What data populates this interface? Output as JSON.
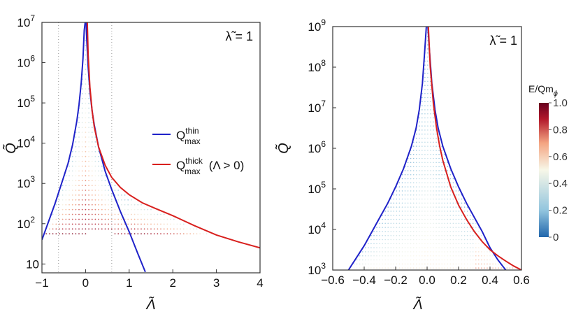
{
  "colors": {
    "thin_curve": "#1f22c9",
    "thick_curve": "#d8201e",
    "frame": "#333333",
    "guide_lines": "#9a9a9a",
    "colormap": [
      "#2166ac",
      "#92c5de",
      "#f7f7e8",
      "#f4a582",
      "#b2182b",
      "#67001f"
    ]
  },
  "chart_data": [
    {
      "type": "line",
      "panel": "left",
      "annotation": "λ̃ = 1",
      "xlabel": "Λ̃",
      "ylabel": "Q̃",
      "xlim": [
        -1,
        4
      ],
      "ylim_log10": [
        0.78,
        7
      ],
      "y_scale": "log",
      "xticks": [
        "−1",
        "0",
        "1",
        "2",
        "3",
        "4"
      ],
      "xtick_values": [
        -1,
        0,
        1,
        2,
        3,
        4
      ],
      "yticks": [
        {
          "base": "10",
          "exp": "",
          "log10": 1
        },
        {
          "base": "10",
          "exp": "2",
          "log10": 2
        },
        {
          "base": "10",
          "exp": "3",
          "log10": 3
        },
        {
          "base": "10",
          "exp": "4",
          "log10": 4
        },
        {
          "base": "10",
          "exp": "5",
          "log10": 5
        },
        {
          "base": "10",
          "exp": "6",
          "log10": 6
        },
        {
          "base": "10",
          "exp": "7",
          "log10": 7
        }
      ],
      "guide_lines_x": [
        -0.62,
        0.6
      ],
      "legend": [
        {
          "label": "Q",
          "sup": "thin",
          "sub": "max",
          "suffix": "",
          "color_key": "thin_curve"
        },
        {
          "label": "Q",
          "sup": "thick",
          "sub": "max",
          "suffix": " (Λ > 0)",
          "color_key": "thick_curve"
        }
      ],
      "series": [
        {
          "name": "Qmax thin",
          "color_key": "thin_curve",
          "x": [
            -1.0,
            -0.85,
            -0.7,
            -0.55,
            -0.4,
            -0.3,
            -0.2,
            -0.15,
            -0.1,
            -0.06,
            -0.03,
            -0.01
          ],
          "log10_y": [
            1.6,
            2.05,
            2.5,
            3.0,
            3.5,
            3.95,
            4.55,
            4.95,
            5.5,
            6.1,
            6.8,
            7.0
          ]
        },
        {
          "name": "Qmax thin (Λ > 0)",
          "color_key": "thin_curve",
          "x": [
            0.01,
            0.03,
            0.06,
            0.1,
            0.15,
            0.2,
            0.3,
            0.45,
            0.6,
            0.8,
            1.0,
            1.2,
            1.37
          ],
          "log10_y": [
            7.0,
            6.5,
            5.9,
            5.3,
            4.8,
            4.45,
            3.9,
            3.3,
            2.85,
            2.3,
            1.8,
            1.25,
            0.8
          ]
        },
        {
          "name": "Qmax thick",
          "color_key": "thick_curve",
          "x": [
            0.04,
            0.06,
            0.1,
            0.15,
            0.2,
            0.3,
            0.45,
            0.6,
            0.8,
            1.0,
            1.3,
            1.6,
            2.0,
            2.5,
            3.0,
            3.5,
            4.0
          ],
          "log10_y": [
            7.0,
            6.2,
            5.4,
            4.8,
            4.4,
            3.9,
            3.45,
            3.15,
            2.9,
            2.72,
            2.52,
            2.38,
            2.2,
            1.95,
            1.72,
            1.55,
            1.4
          ]
        }
      ]
    },
    {
      "type": "line",
      "panel": "right",
      "annotation": "λ̃ = 1",
      "xlabel": "Λ̃",
      "ylabel": "Q̃",
      "xlim": [
        -0.6,
        0.6
      ],
      "ylim_log10": [
        3,
        9
      ],
      "y_scale": "log",
      "xticks": [
        "−0.6",
        "−0.4",
        "−0.2",
        "0.0",
        "0.2",
        "0.4",
        "0.6"
      ],
      "xtick_values": [
        -0.6,
        -0.4,
        -0.2,
        0.0,
        0.2,
        0.4,
        0.6
      ],
      "yticks": [
        {
          "base": "10",
          "exp": "3",
          "log10": 3
        },
        {
          "base": "10",
          "exp": "4",
          "log10": 4
        },
        {
          "base": "10",
          "exp": "5",
          "log10": 5
        },
        {
          "base": "10",
          "exp": "6",
          "log10": 6
        },
        {
          "base": "10",
          "exp": "7",
          "log10": 7
        },
        {
          "base": "10",
          "exp": "8",
          "log10": 8
        },
        {
          "base": "10",
          "exp": "9",
          "log10": 9
        }
      ],
      "series": [
        {
          "name": "Qmax thin",
          "color_key": "thin_curve",
          "x": [
            -0.5,
            -0.45,
            -0.4,
            -0.35,
            -0.3,
            -0.25,
            -0.2,
            -0.15,
            -0.1,
            -0.07,
            -0.05,
            -0.03,
            -0.015,
            -0.005
          ],
          "log10_y": [
            3.0,
            3.3,
            3.6,
            3.95,
            4.3,
            4.65,
            5.05,
            5.5,
            6.05,
            6.5,
            6.95,
            7.6,
            8.4,
            9.0
          ]
        },
        {
          "name": "Qmax thin (Λ > 0)",
          "color_key": "thin_curve",
          "x": [
            0.005,
            0.015,
            0.03,
            0.05,
            0.07,
            0.1,
            0.15,
            0.2,
            0.25,
            0.3,
            0.35,
            0.4,
            0.45,
            0.5
          ],
          "log10_y": [
            9.0,
            8.4,
            7.6,
            6.95,
            6.5,
            6.05,
            5.5,
            5.05,
            4.65,
            4.3,
            3.95,
            3.55,
            3.25,
            3.0
          ]
        },
        {
          "name": "Qmax thick",
          "color_key": "thick_curve",
          "x": [
            0.008,
            0.02,
            0.04,
            0.06,
            0.08,
            0.1,
            0.15,
            0.2,
            0.25,
            0.3,
            0.35,
            0.4,
            0.45,
            0.5,
            0.55,
            0.6
          ],
          "log10_y": [
            9.0,
            8.0,
            7.1,
            6.5,
            6.05,
            5.7,
            5.05,
            4.6,
            4.25,
            3.95,
            3.7,
            3.5,
            3.35,
            3.22,
            3.1,
            3.0
          ]
        }
      ],
      "colorbar": {
        "title": "E/Qm",
        "title_sub": "ϕ",
        "ticks": [
          "1.0",
          "0.8",
          "0.6",
          "0.4",
          "0.2",
          "0"
        ],
        "tick_values": [
          1.0,
          0.8,
          0.6,
          0.4,
          0.2,
          0.0
        ],
        "range": [
          0,
          1
        ]
      }
    }
  ]
}
